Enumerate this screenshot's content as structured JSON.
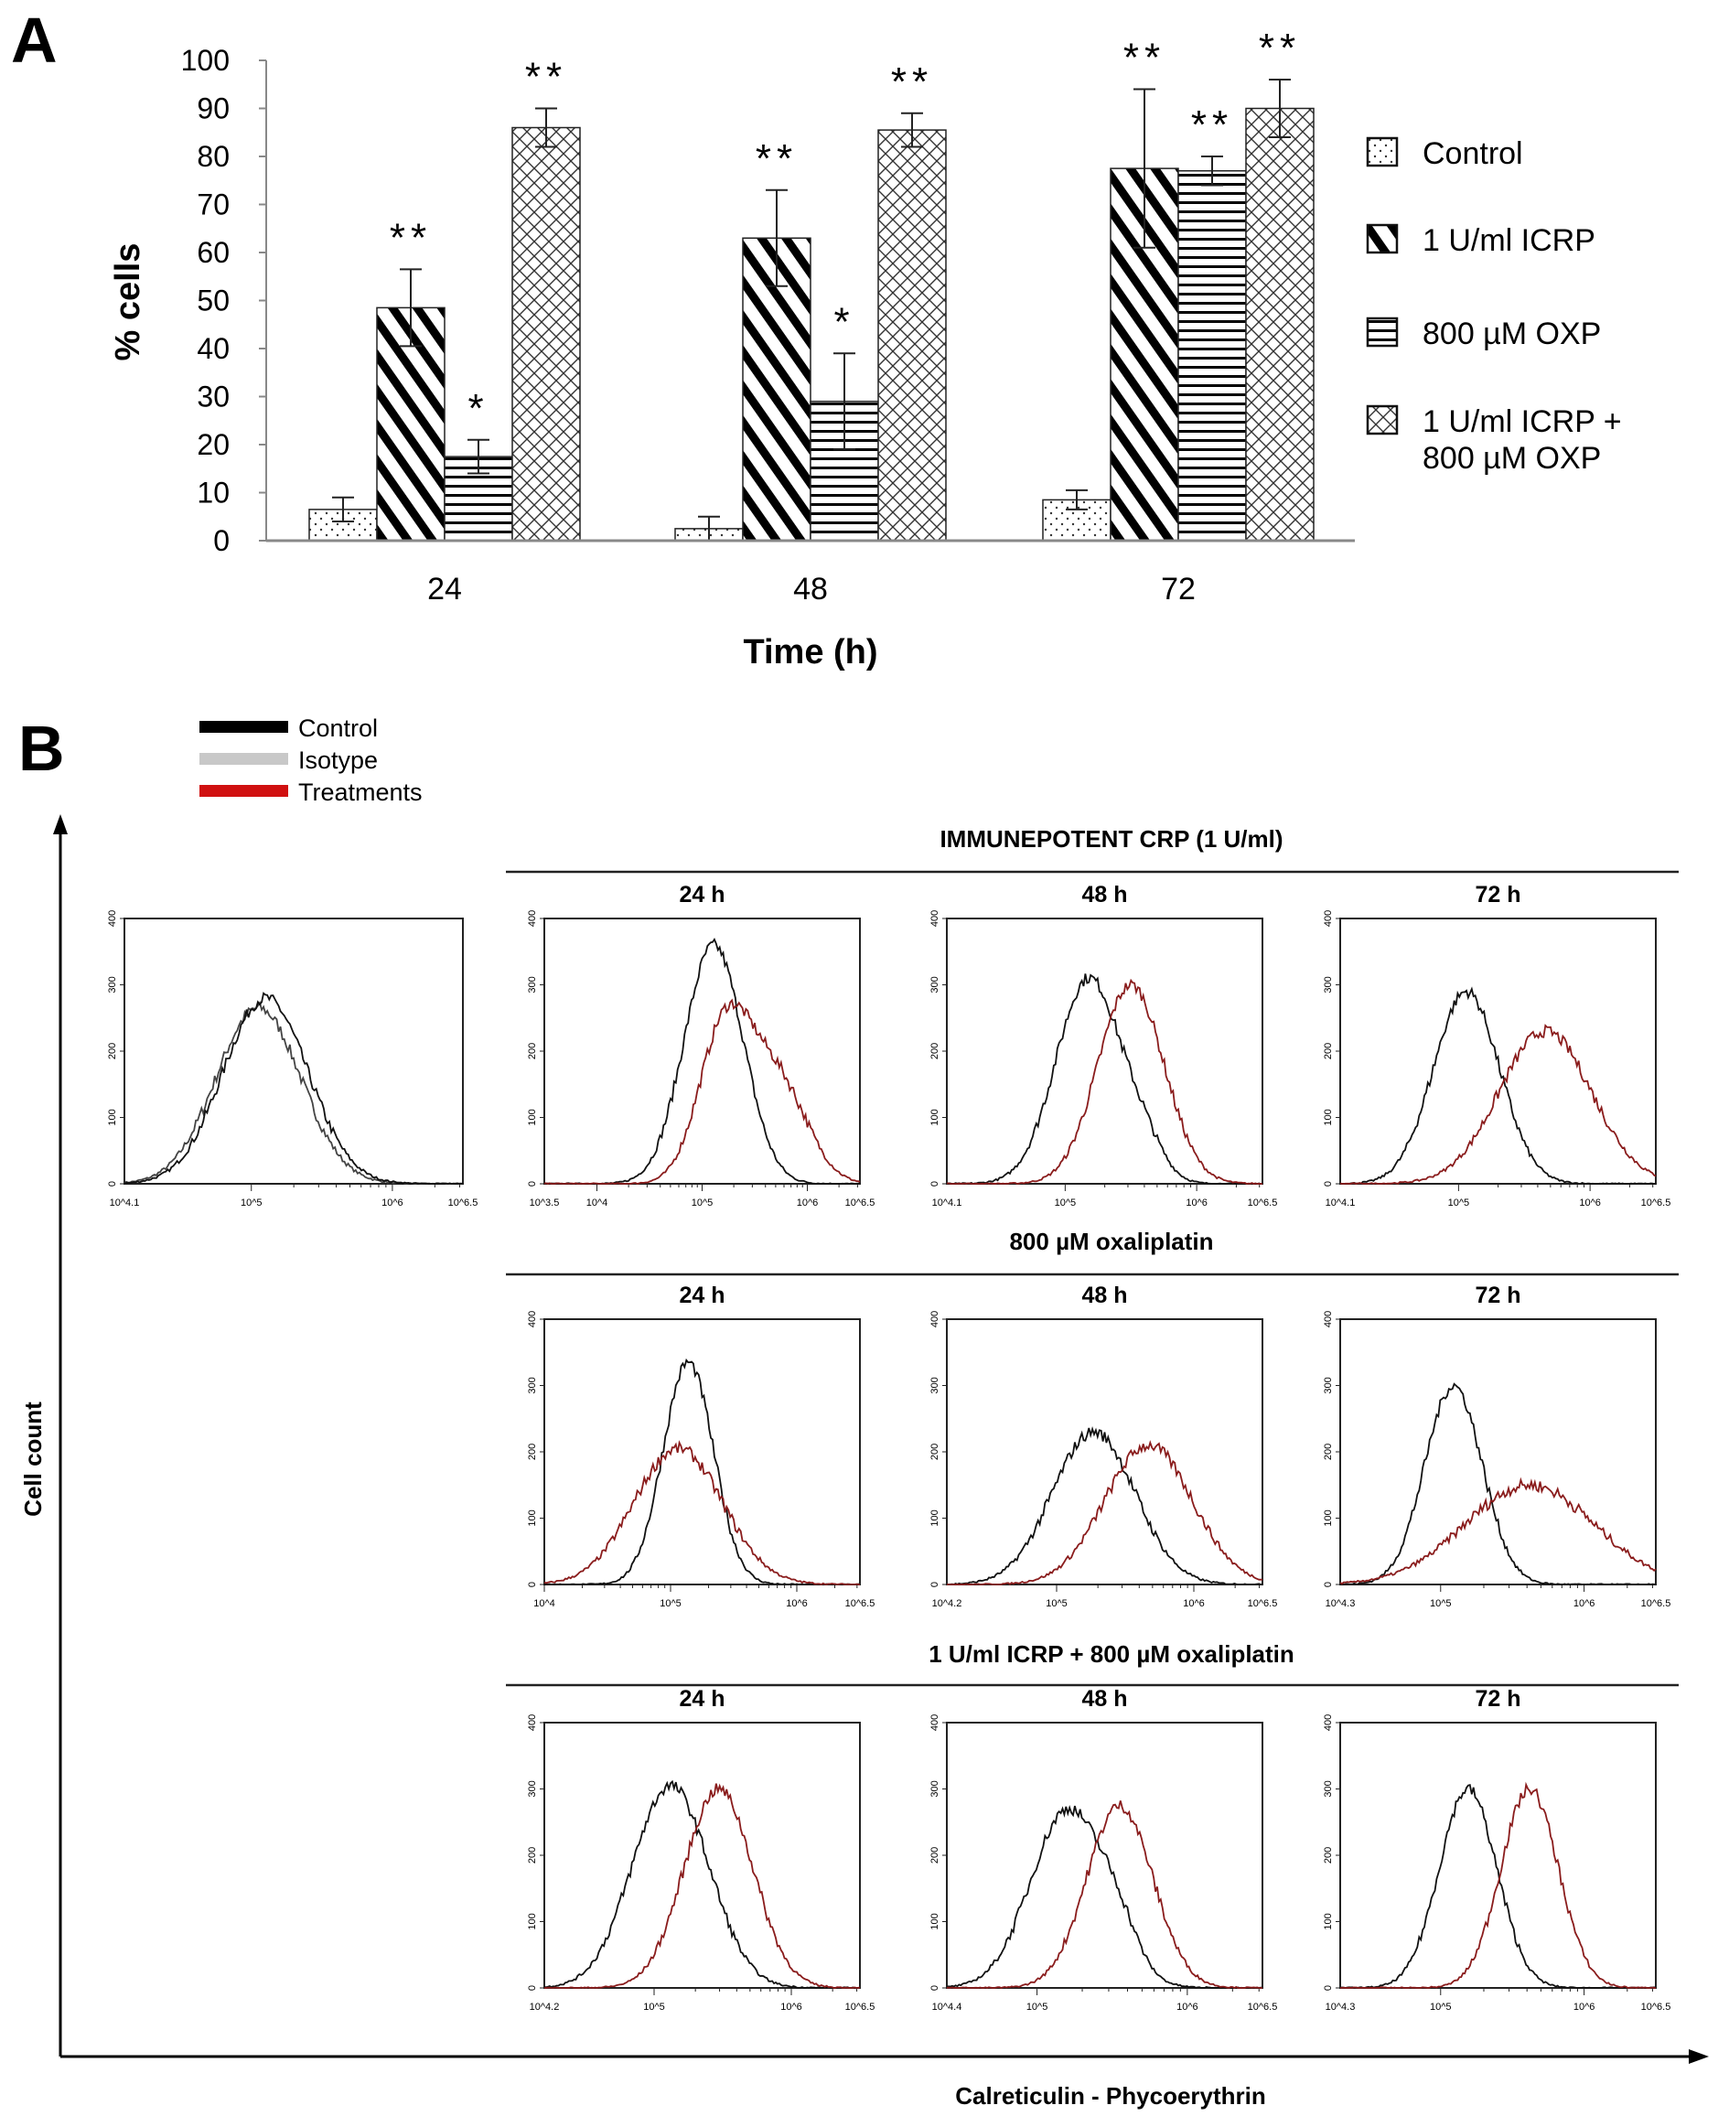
{
  "chart_data": [
    {
      "panel_label": "A",
      "type": "bar",
      "ylabel": "% cells",
      "xlabel": "Time (h)",
      "ylim": [
        0,
        100
      ],
      "yticks": [
        "0",
        "10",
        "20",
        "30",
        "40",
        "50",
        "60",
        "70",
        "80",
        "90",
        "100"
      ],
      "categories": [
        "24",
        "48",
        "72"
      ],
      "legend_position": "right",
      "series": [
        {
          "name": "Control",
          "pattern": "dots",
          "values": [
            6.5,
            2.5,
            8.5
          ],
          "errors": [
            2.5,
            2.5,
            2
          ],
          "significance": [
            "",
            "",
            ""
          ]
        },
        {
          "name": "1 U/ml ICRP",
          "pattern": "diagonal",
          "values": [
            48.5,
            63,
            77.5
          ],
          "errors": [
            8,
            10,
            16.5
          ],
          "significance": [
            "**",
            "**",
            "**"
          ]
        },
        {
          "name": "800 µM OXP",
          "pattern": "horizontal",
          "values": [
            17.5,
            29,
            77
          ],
          "errors": [
            3.5,
            10,
            3
          ],
          "significance": [
            "*",
            "*",
            "**"
          ]
        },
        {
          "name": "1 U/ml ICRP + 800 µM OXP",
          "name_line2": "800 µM OXP",
          "name_line1": "1 U/ml ICRP +",
          "pattern": "crosshatch",
          "values": [
            86,
            85.5,
            90
          ],
          "errors": [
            4,
            3.5,
            6
          ],
          "significance": [
            "**",
            "**",
            "**"
          ]
        }
      ]
    },
    {
      "panel_label": "B",
      "type": "line",
      "ylabel": "Cell count",
      "xlabel": "Calreticulin - Phycoerythrin",
      "legend": [
        {
          "name": "Control",
          "color": "#000000"
        },
        {
          "name": "Isotype",
          "color": "#c8c8c8"
        },
        {
          "name": "Treatments",
          "color": "#d01010"
        }
      ],
      "yticks": [
        "0",
        "100",
        "200",
        "300",
        "400"
      ],
      "ylim": [
        0,
        400
      ],
      "isotype": {
        "xrange": [
          4.1,
          6.5
        ],
        "xticklabels": [
          "10^4.1",
          "10^5",
          "10^6",
          "10^6.5"
        ],
        "control": [
          [
            5.1,
            280,
            0.3
          ]
        ],
        "isotype": [
          [
            5.05,
            265,
            0.3
          ]
        ]
      },
      "rows": [
        {
          "title": "IMMUNEPOTENT CRP (1 U/ml)",
          "panels": [
            {
              "time": "24 h",
              "xrange": [
                3.5,
                6.5
              ],
              "xticklabels": [
                "10^3.5",
                "10^4",
                "10^5",
                "10^6",
                "10^6.5"
              ],
              "control": [
                [
                  5.11,
                  360,
                  0.28
                ]
              ],
              "treatment": [
                [
                  5.22,
                  235,
                  0.25
                ],
                [
                  5.72,
                  150,
                  0.28
                ]
              ]
            },
            {
              "time": "48 h",
              "xrange": [
                4.1,
                6.5
              ],
              "xticklabels": [
                "10^4.1",
                "10^5",
                "10^6",
                "10^6.5"
              ],
              "control": [
                [
                  5.18,
                  310,
                  0.25
                ],
                [
                  5.6,
                  40,
                  0.15
                ]
              ],
              "treatment": [
                [
                  5.5,
                  300,
                  0.25
                ]
              ]
            },
            {
              "time": "72 h",
              "xrange": [
                4.1,
                6.5
              ],
              "xticklabels": [
                "10^4.1",
                "10^5",
                "10^6",
                "10^6.5"
              ],
              "control": [
                [
                  5.06,
                  290,
                  0.25
                ]
              ],
              "treatment": [
                [
                  5.66,
                  230,
                  0.35
                ]
              ]
            }
          ]
        },
        {
          "title": "800 µM oxaliplatin",
          "panels": [
            {
              "time": "24 h",
              "xrange": [
                4.0,
                6.5
              ],
              "xticklabels": [
                "10^4",
                "10^5",
                "10^6",
                "10^6.5"
              ],
              "control": [
                [
                  5.14,
                  335,
                  0.2
                ]
              ],
              "treatment": [
                [
                  5.06,
                  205,
                  0.35
                ]
              ]
            },
            {
              "time": "48 h",
              "xrange": [
                4.2,
                6.5
              ],
              "xticklabels": [
                "10^4.2",
                "10^5",
                "10^6",
                "10^6.5"
              ],
              "control": [
                [
                  5.27,
                  230,
                  0.3
                ]
              ],
              "treatment": [
                [
                  5.67,
                  210,
                  0.32
                ]
              ]
            },
            {
              "time": "72 h",
              "xrange": [
                4.3,
                6.5
              ],
              "xticklabels": [
                "10^4.3",
                "10^5",
                "10^6",
                "10^6.5"
              ],
              "control": [
                [
                  5.09,
                  300,
                  0.2
                ]
              ],
              "treatment": [
                [
                  5.62,
                  150,
                  0.45
                ]
              ]
            }
          ]
        },
        {
          "title": "1 U/ml ICRP + 800 µM oxaliplatin",
          "panels": [
            {
              "time": "24 h",
              "xrange": [
                4.2,
                6.5
              ],
              "xticklabels": [
                "10^4.2",
                "10^5",
                "10^6",
                "10^6.5"
              ],
              "control": [
                [
                  5.12,
                  305,
                  0.28
                ]
              ],
              "treatment": [
                [
                  5.47,
                  300,
                  0.25
                ]
              ]
            },
            {
              "time": "48 h",
              "xrange": [
                4.4,
                6.5
              ],
              "xticklabels": [
                "10^4.4",
                "10^5",
                "10^6",
                "10^6.5"
              ],
              "control": [
                [
                  5.21,
                  270,
                  0.25
                ],
                [
                  5.55,
                  40,
                  0.12
                ]
              ],
              "treatment": [
                [
                  5.55,
                  275,
                  0.22
                ]
              ]
            },
            {
              "time": "72 h",
              "xrange": [
                4.3,
                6.5
              ],
              "xticklabels": [
                "10^4.3",
                "10^5",
                "10^6",
                "10^6.5"
              ],
              "control": [
                [
                  5.19,
                  300,
                  0.2
                ]
              ],
              "treatment": [
                [
                  5.62,
                  300,
                  0.2
                ]
              ]
            }
          ]
        }
      ]
    }
  ]
}
